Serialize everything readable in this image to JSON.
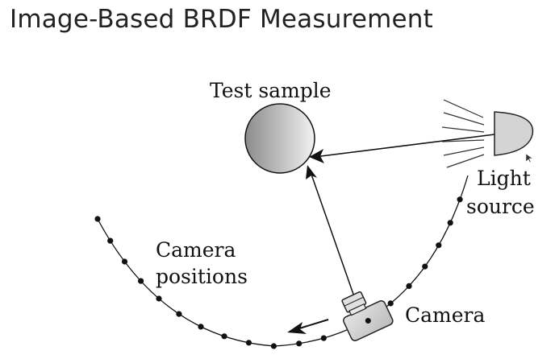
{
  "slide": {
    "title": "Image-Based BRDF Measurement"
  },
  "diagram": {
    "labels": {
      "test_sample": "Test sample",
      "light_line1": "Light",
      "light_line2": "source",
      "camera_positions_line1": "Camera",
      "camera_positions_line2": "positions",
      "camera": "Camera"
    },
    "camera_position_count": 18
  },
  "colors": {
    "ink": "#111111",
    "sphere_dark": "#8c8c8c",
    "sphere_light": "#f2f2f2",
    "lamp_fill": "#d4d4d4",
    "camera_fill": "#cfcfcf"
  }
}
